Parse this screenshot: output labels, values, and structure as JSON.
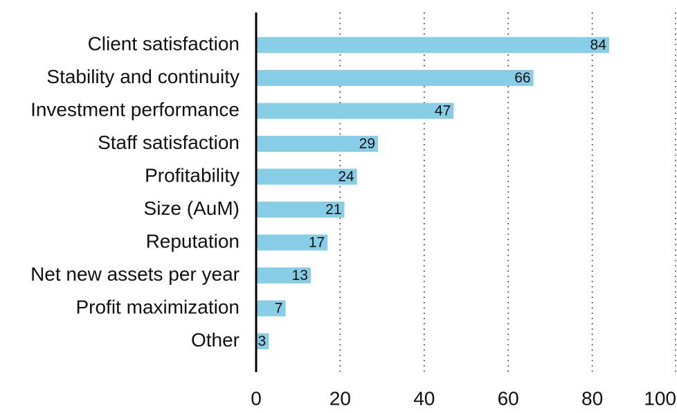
{
  "chart_data": {
    "type": "bar",
    "orientation": "horizontal",
    "categories": [
      "Client satisfaction",
      "Stability and continuity",
      "Investment performance",
      "Staff satisfaction",
      "Profitability",
      "Size (AuM)",
      "Reputation",
      "Net new assets per year",
      "Profit maximization",
      "Other"
    ],
    "values": [
      84,
      66,
      47,
      29,
      24,
      21,
      17,
      13,
      7,
      3
    ],
    "xlim": [
      0,
      100
    ],
    "xticks": [
      0,
      20,
      40,
      60,
      80,
      100
    ],
    "grid": "vertical dotted",
    "bar_color": "#87CDE5",
    "title": "",
    "xlabel": "",
    "ylabel": ""
  }
}
